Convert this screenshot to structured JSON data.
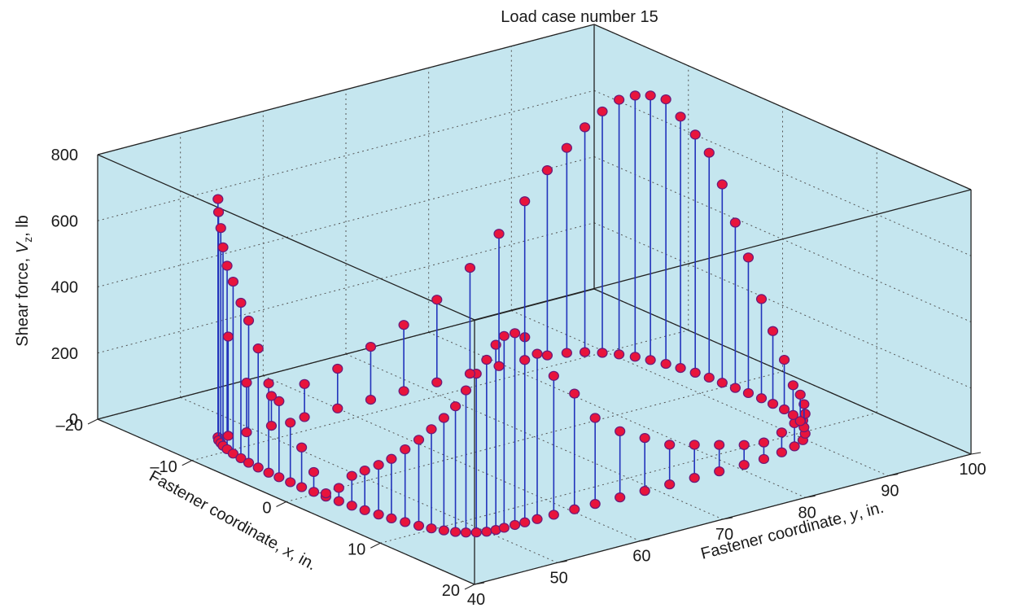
{
  "chart_data": {
    "type": "3d-stem",
    "title": "Load case number 15",
    "xlabel": {
      "pre": "Fastener coordinate, ",
      "var": "x",
      "post": ", in."
    },
    "ylabel": {
      "pre": "Fastener coordinate, ",
      "var": "y",
      "post": ", in."
    },
    "zlabel": {
      "pre": "Shear force, ",
      "var": "V",
      "sub": "z",
      "post": ", lb"
    },
    "xlim": [
      -20,
      20
    ],
    "ylim": [
      40,
      100
    ],
    "zlim": [
      0,
      800
    ],
    "x_ticks": [
      "–20",
      "–10",
      "0",
      "10",
      "20"
    ],
    "y_ticks": [
      "40",
      "50",
      "60",
      "70",
      "80",
      "90",
      "100"
    ],
    "z_ticks": [
      "0",
      "200",
      "400",
      "600",
      "800"
    ],
    "grid": true,
    "colors": {
      "pane": "#c5e6ef",
      "stem": "#2233bb",
      "marker_fill": "#e8143c",
      "marker_edge": "#6a1a7a",
      "axis_line": "#222222",
      "grid": "#555555"
    },
    "points": [
      {
        "x": -12.5,
        "y": 46.0,
        "z": 720
      },
      {
        "x": -12.0,
        "y": 45.5,
        "z": 690
      },
      {
        "x": -11.5,
        "y": 45.2,
        "z": 650
      },
      {
        "x": -11.0,
        "y": 44.9,
        "z": 600
      },
      {
        "x": -10.3,
        "y": 44.6,
        "z": 555
      },
      {
        "x": -9.4,
        "y": 44.3,
        "z": 520
      },
      {
        "x": -8.4,
        "y": 44.1,
        "z": 470
      },
      {
        "x": -7.4,
        "y": 43.9,
        "z": 430
      },
      {
        "x": -6.3,
        "y": 43.8,
        "z": 360
      },
      {
        "x": -5.1,
        "y": 43.7,
        "z": 270
      },
      {
        "x": -4.0,
        "y": 43.7,
        "z": 230
      },
      {
        "x": -2.8,
        "y": 43.7,
        "z": 180
      },
      {
        "x": -1.6,
        "y": 43.7,
        "z": 120
      },
      {
        "x": -0.4,
        "y": 43.8,
        "z": 60
      },
      {
        "x": 0.8,
        "y": 43.9,
        "z": 10
      },
      {
        "x": 2.0,
        "y": 44.1,
        "z": 40
      },
      {
        "x": 3.2,
        "y": 44.3,
        "z": 90
      },
      {
        "x": 4.4,
        "y": 44.5,
        "z": 120
      },
      {
        "x": 5.6,
        "y": 44.8,
        "z": 150
      },
      {
        "x": 6.7,
        "y": 45.1,
        "z": 180
      },
      {
        "x": 7.8,
        "y": 45.5,
        "z": 220
      },
      {
        "x": 8.9,
        "y": 45.9,
        "z": 260
      },
      {
        "x": 9.8,
        "y": 46.4,
        "z": 300
      },
      {
        "x": 10.6,
        "y": 47.0,
        "z": 340
      },
      {
        "x": 11.3,
        "y": 47.6,
        "z": 380
      },
      {
        "x": 11.8,
        "y": 48.3,
        "z": 430
      },
      {
        "x": 12.2,
        "y": 49.1,
        "z": 480
      },
      {
        "x": 12.5,
        "y": 50.0,
        "z": 520
      },
      {
        "x": 12.6,
        "y": 51.0,
        "z": 560
      },
      {
        "x": 12.6,
        "y": 52.0,
        "z": 580
      },
      {
        "x": 12.6,
        "y": 53.3,
        "z": 580
      },
      {
        "x": 12.6,
        "y": 54.5,
        "z": 560
      },
      {
        "x": 12.6,
        "y": 56.0,
        "z": 500
      },
      {
        "x": 12.6,
        "y": 58.0,
        "z": 420
      },
      {
        "x": 12.6,
        "y": 60.5,
        "z": 350
      },
      {
        "x": 12.6,
        "y": 63.0,
        "z": 260
      },
      {
        "x": 12.6,
        "y": 66.0,
        "z": 200
      },
      {
        "x": 12.6,
        "y": 69.0,
        "z": 160
      },
      {
        "x": 12.6,
        "y": 72.0,
        "z": 120
      },
      {
        "x": 12.6,
        "y": 75.0,
        "z": 100
      },
      {
        "x": 12.6,
        "y": 78.0,
        "z": 80
      },
      {
        "x": 12.6,
        "y": 81.0,
        "z": 60
      },
      {
        "x": 12.5,
        "y": 83.5,
        "z": 50
      },
      {
        "x": 12.2,
        "y": 86.0,
        "z": 60
      },
      {
        "x": 11.8,
        "y": 88.0,
        "z": 70
      },
      {
        "x": 11.2,
        "y": 89.7,
        "z": 60
      },
      {
        "x": 10.3,
        "y": 91.0,
        "z": 60
      },
      {
        "x": 9.3,
        "y": 92.0,
        "z": 70
      },
      {
        "x": 8.2,
        "y": 92.8,
        "z": 80
      },
      {
        "x": 7.0,
        "y": 93.3,
        "z": 90
      },
      {
        "x": 5.8,
        "y": 93.6,
        "z": 150
      },
      {
        "x": 4.5,
        "y": 93.7,
        "z": 220
      },
      {
        "x": 3.2,
        "y": 93.8,
        "z": 300
      },
      {
        "x": 1.9,
        "y": 93.7,
        "z": 410
      },
      {
        "x": 0.6,
        "y": 93.6,
        "z": 500
      },
      {
        "x": -0.7,
        "y": 93.5,
        "z": 600
      },
      {
        "x": -2.0,
        "y": 93.4,
        "z": 680
      },
      {
        "x": -3.3,
        "y": 93.2,
        "z": 720
      },
      {
        "x": -4.6,
        "y": 92.9,
        "z": 760
      },
      {
        "x": -5.8,
        "y": 92.5,
        "z": 800
      },
      {
        "x": -7.0,
        "y": 92.0,
        "z": 800
      },
      {
        "x": -8.1,
        "y": 91.4,
        "z": 790
      },
      {
        "x": -9.1,
        "y": 90.6,
        "z": 770
      },
      {
        "x": -10.0,
        "y": 89.6,
        "z": 730
      },
      {
        "x": -10.8,
        "y": 88.4,
        "z": 680
      },
      {
        "x": -11.4,
        "y": 86.9,
        "z": 620
      },
      {
        "x": -11.8,
        "y": 85.0,
        "z": 560
      },
      {
        "x": -12.0,
        "y": 82.5,
        "z": 480
      },
      {
        "x": -12.1,
        "y": 79.5,
        "z": 400
      },
      {
        "x": -12.1,
        "y": 76.0,
        "z": 320
      },
      {
        "x": -12.1,
        "y": 72.0,
        "z": 250
      },
      {
        "x": -12.1,
        "y": 68.0,
        "z": 200
      },
      {
        "x": -12.1,
        "y": 64.0,
        "z": 160
      },
      {
        "x": -12.1,
        "y": 60.0,
        "z": 120
      },
      {
        "x": -12.1,
        "y": 56.0,
        "z": 100
      },
      {
        "x": -12.1,
        "y": 52.0,
        "z": 90
      },
      {
        "x": -12.1,
        "y": 49.0,
        "z": 150
      },
      {
        "x": -12.3,
        "y": 47.0,
        "z": 300
      }
    ]
  }
}
